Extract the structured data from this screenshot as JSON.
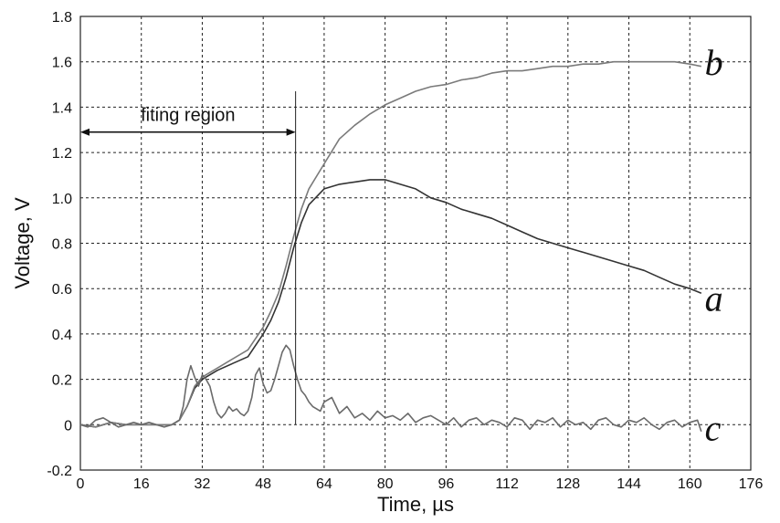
{
  "chart_data": {
    "type": "line",
    "xlabel": "Time, µs",
    "ylabel": "Voltage, V",
    "xlim": [
      0,
      176
    ],
    "ylim": [
      -0.2,
      1.8
    ],
    "xticks": [
      0,
      16,
      32,
      48,
      64,
      80,
      96,
      112,
      128,
      144,
      160,
      176
    ],
    "yticks": [
      -0.2,
      0,
      0.2,
      0.4,
      0.6,
      0.8,
      1.0,
      1.2,
      1.4,
      1.6,
      1.8
    ],
    "ytick_labels": [
      "-0.2",
      "0",
      "0.2",
      "0.4",
      "0.6",
      "0.8",
      "1.0",
      "1.2",
      "1.4",
      "1.6",
      "1.8"
    ],
    "grid": true,
    "annotations": [
      {
        "text": "fiting region",
        "x_start": 0,
        "x_end": 56.5,
        "y": 1.29
      }
    ],
    "marker_line": {
      "x": 56.5,
      "y_start": 0.0,
      "y_end": 1.47
    },
    "series": [
      {
        "name": "a",
        "label_at": [
          162,
          0.55
        ],
        "x": [
          0,
          4,
          8,
          12,
          16,
          20,
          24,
          26,
          28,
          30,
          32,
          36,
          40,
          44,
          48,
          50,
          52,
          54,
          56,
          58,
          60,
          64,
          68,
          72,
          76,
          80,
          84,
          88,
          92,
          96,
          100,
          104,
          108,
          112,
          116,
          120,
          124,
          128,
          132,
          136,
          140,
          144,
          148,
          152,
          156,
          160,
          163
        ],
        "y": [
          0,
          -0.01,
          0.01,
          0,
          0,
          0,
          0,
          0.02,
          0.08,
          0.16,
          0.2,
          0.24,
          0.27,
          0.3,
          0.4,
          0.46,
          0.54,
          0.65,
          0.78,
          0.89,
          0.97,
          1.04,
          1.06,
          1.07,
          1.08,
          1.08,
          1.06,
          1.04,
          1.0,
          0.98,
          0.95,
          0.93,
          0.91,
          0.88,
          0.85,
          0.82,
          0.8,
          0.78,
          0.76,
          0.74,
          0.72,
          0.7,
          0.68,
          0.65,
          0.62,
          0.6,
          0.58
        ]
      },
      {
        "name": "b",
        "label_at": [
          162,
          1.59
        ],
        "x": [
          0,
          4,
          8,
          12,
          16,
          20,
          24,
          26,
          28,
          30,
          32,
          36,
          40,
          44,
          48,
          50,
          52,
          54,
          56,
          58,
          60,
          64,
          68,
          72,
          76,
          80,
          84,
          88,
          92,
          96,
          100,
          104,
          108,
          112,
          116,
          120,
          124,
          128,
          132,
          136,
          140,
          144,
          148,
          152,
          156,
          160,
          163
        ],
        "y": [
          0,
          -0.01,
          0.01,
          0,
          0,
          0,
          0,
          0.02,
          0.08,
          0.17,
          0.21,
          0.25,
          0.29,
          0.33,
          0.43,
          0.5,
          0.58,
          0.7,
          0.83,
          0.95,
          1.04,
          1.15,
          1.26,
          1.32,
          1.37,
          1.41,
          1.44,
          1.47,
          1.49,
          1.5,
          1.52,
          1.53,
          1.55,
          1.56,
          1.56,
          1.57,
          1.58,
          1.58,
          1.59,
          1.59,
          1.6,
          1.6,
          1.6,
          1.6,
          1.6,
          1.59,
          1.58
        ]
      },
      {
        "name": "c",
        "label_at": [
          162,
          -0.02
        ],
        "x": [
          0,
          2,
          4,
          6,
          8,
          10,
          12,
          14,
          16,
          18,
          20,
          22,
          24,
          26,
          27,
          28,
          29,
          30,
          31,
          32,
          33,
          34,
          35,
          36,
          37,
          38,
          39,
          40,
          41,
          42,
          43,
          44,
          45,
          46,
          47,
          48,
          49,
          50,
          51,
          52,
          53,
          54,
          55,
          56,
          57,
          58,
          59,
          60,
          61,
          62,
          63,
          64,
          66,
          68,
          70,
          72,
          74,
          76,
          78,
          80,
          82,
          84,
          86,
          88,
          90,
          92,
          94,
          96,
          98,
          100,
          102,
          104,
          106,
          108,
          110,
          112,
          114,
          116,
          118,
          120,
          122,
          124,
          126,
          128,
          130,
          132,
          134,
          136,
          138,
          140,
          142,
          144,
          146,
          148,
          150,
          152,
          154,
          156,
          158,
          160,
          162,
          163
        ],
        "y": [
          0,
          -0.01,
          0.02,
          0.03,
          0.01,
          -0.01,
          0,
          0.01,
          0,
          0.01,
          0,
          -0.01,
          0,
          0.02,
          0.08,
          0.2,
          0.26,
          0.21,
          0.17,
          0.22,
          0.2,
          0.17,
          0.1,
          0.05,
          0.03,
          0.05,
          0.08,
          0.06,
          0.07,
          0.05,
          0.04,
          0.06,
          0.12,
          0.22,
          0.25,
          0.18,
          0.14,
          0.15,
          0.2,
          0.26,
          0.32,
          0.35,
          0.33,
          0.26,
          0.2,
          0.15,
          0.13,
          0.1,
          0.08,
          0.07,
          0.06,
          0.1,
          0.12,
          0.05,
          0.08,
          0.03,
          0.05,
          0.02,
          0.06,
          0.03,
          0.04,
          0.02,
          0.05,
          0.01,
          0.03,
          0.04,
          0.02,
          0,
          0.03,
          -0.01,
          0.02,
          0.03,
          0,
          0.02,
          0.01,
          -0.01,
          0.03,
          0.02,
          -0.02,
          0.02,
          0.01,
          0.03,
          -0.01,
          0.02,
          0,
          0.01,
          -0.02,
          0.02,
          0.03,
          0,
          -0.01,
          0.02,
          0.01,
          0.03,
          0,
          -0.02,
          0.01,
          0.02,
          -0.01,
          0.01,
          0.02,
          -0.03
        ]
      }
    ]
  }
}
